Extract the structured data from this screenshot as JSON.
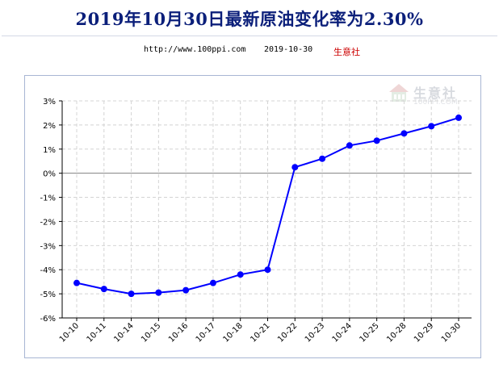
{
  "header": {
    "title": "2019年10月30日最新原油变化率为2.30%",
    "url": "http://www.100ppi.com",
    "date": "2019-10-30",
    "source": "生意社"
  },
  "watermark": {
    "brand": "生意社",
    "domain": "100PPI.COM"
  },
  "colors": {
    "title": "#0b1f7a",
    "series": "#0000ff",
    "grid": "#d4d4d4",
    "zero_line": "#808080",
    "source": "#cc0000"
  },
  "chart_data": {
    "type": "line",
    "title": "2019年10月30日最新原油变化率为2.30%",
    "xlabel": "",
    "ylabel": "",
    "ylim": [
      -6,
      3
    ],
    "y_ticks": [
      3,
      2,
      1,
      0,
      -1,
      -2,
      -3,
      -4,
      -5,
      -6
    ],
    "y_tick_labels": [
      "3%",
      "2%",
      "1%",
      "0%",
      "-1%",
      "-2%",
      "-3%",
      "-4%",
      "-5%",
      "-6%"
    ],
    "categories": [
      "10-10",
      "10-11",
      "10-14",
      "10-15",
      "10-16",
      "10-17",
      "10-18",
      "10-21",
      "10-22",
      "10-23",
      "10-24",
      "10-25",
      "10-28",
      "10-29",
      "10-30"
    ],
    "series": [
      {
        "values": [
          -4.55,
          -4.8,
          -5.0,
          -4.95,
          -4.85,
          -4.55,
          -4.2,
          -4.0,
          0.25,
          0.6,
          1.15,
          1.35,
          1.65,
          1.95,
          2.3
        ]
      }
    ],
    "grid": true,
    "legend": "none"
  }
}
